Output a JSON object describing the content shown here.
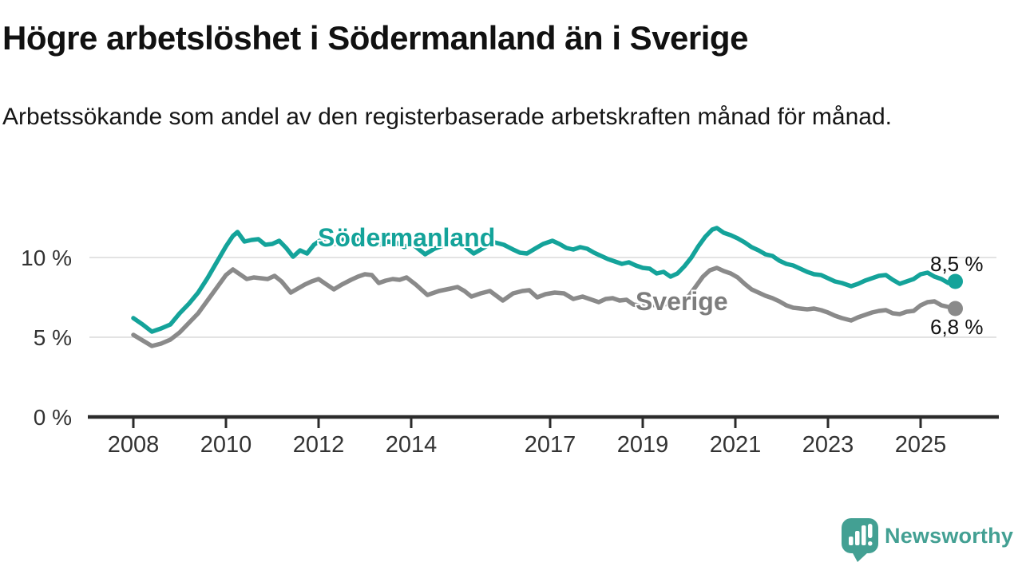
{
  "header": {
    "title": "Högre arbetslöshet i Södermanland än i Sverige",
    "subtitle": "Arbetssökande som andel av den registerbaserade arbetskraften månad för månad."
  },
  "colors": {
    "sodermanland_teal": "#14A39A",
    "sverige_gray": "#8A8A8A",
    "sverige_label_gray": "#7D7D7D",
    "axis_dark": "#2B2B2B",
    "gridline_gray": "#DADADA",
    "tick_label_gray": "#333333",
    "brand_teal": "#43A093",
    "text_black": "#111111",
    "background": "#FFFFFF"
  },
  "chart_data": {
    "type": "line",
    "title": "Högre arbetslöshet i Södermanland än i Sverige",
    "subtitle": "Arbetssökande som andel av den registerbaserade arbetskraften månad för månad.",
    "unit": "%",
    "grid": "horizontal-only",
    "legend_position": "inline-on-lines",
    "x_axis": {
      "type": "time-years",
      "range": [
        2007.0,
        2026.7
      ],
      "ticks": [
        {
          "value": 2008,
          "label": "2008"
        },
        {
          "value": 2010,
          "label": "2010"
        },
        {
          "value": 2012,
          "label": "2012"
        },
        {
          "value": 2014,
          "label": "2014"
        },
        {
          "value": 2017,
          "label": "2017"
        },
        {
          "value": 2019,
          "label": "2019"
        },
        {
          "value": 2021,
          "label": "2021"
        },
        {
          "value": 2023,
          "label": "2023"
        },
        {
          "value": 2025,
          "label": "2025"
        }
      ]
    },
    "y_axis": {
      "range": [
        0,
        12.5
      ],
      "ticks": [
        {
          "value": 10,
          "label": "10 %"
        },
        {
          "value": 5,
          "label": "5 %"
        },
        {
          "value": 0,
          "label": "0 %"
        }
      ]
    },
    "series": [
      {
        "name": "Södermanland",
        "color": "#14A39A",
        "end_label": "8,5 %",
        "end_value": 8.5,
        "points": [
          [
            2008.0,
            6.2
          ],
          [
            2008.2,
            5.8
          ],
          [
            2008.4,
            5.35
          ],
          [
            2008.6,
            5.55
          ],
          [
            2008.8,
            5.8
          ],
          [
            2009.0,
            6.5
          ],
          [
            2009.2,
            7.1
          ],
          [
            2009.4,
            7.8
          ],
          [
            2009.6,
            8.7
          ],
          [
            2009.8,
            9.7
          ],
          [
            2010.0,
            10.7
          ],
          [
            2010.15,
            11.35
          ],
          [
            2010.25,
            11.6
          ],
          [
            2010.4,
            11.0
          ],
          [
            2010.55,
            11.1
          ],
          [
            2010.7,
            11.15
          ],
          [
            2010.85,
            10.8
          ],
          [
            2011.0,
            10.85
          ],
          [
            2011.15,
            11.05
          ],
          [
            2011.3,
            10.6
          ],
          [
            2011.45,
            10.05
          ],
          [
            2011.6,
            10.45
          ],
          [
            2011.75,
            10.25
          ],
          [
            2011.9,
            10.8
          ],
          [
            2012.05,
            11.1
          ],
          [
            2012.2,
            11.2
          ],
          [
            2012.35,
            10.85
          ],
          [
            2012.5,
            11.15
          ],
          [
            2012.65,
            11.05
          ],
          [
            2012.8,
            11.1
          ],
          [
            2013.0,
            11.3
          ],
          [
            2013.2,
            11.05
          ],
          [
            2013.35,
            10.8
          ],
          [
            2013.5,
            11.0
          ],
          [
            2013.7,
            10.9
          ],
          [
            2013.85,
            10.65
          ],
          [
            2014.0,
            10.9
          ],
          [
            2014.15,
            10.55
          ],
          [
            2014.3,
            10.2
          ],
          [
            2014.5,
            10.55
          ],
          [
            2014.7,
            10.75
          ],
          [
            2014.9,
            10.95
          ],
          [
            2015.05,
            11.0
          ],
          [
            2015.2,
            10.6
          ],
          [
            2015.35,
            10.25
          ],
          [
            2015.5,
            10.5
          ],
          [
            2015.65,
            10.75
          ],
          [
            2015.8,
            10.95
          ],
          [
            2016.0,
            10.8
          ],
          [
            2016.2,
            10.5
          ],
          [
            2016.35,
            10.3
          ],
          [
            2016.5,
            10.25
          ],
          [
            2016.7,
            10.6
          ],
          [
            2016.85,
            10.85
          ],
          [
            2017.05,
            11.05
          ],
          [
            2017.2,
            10.85
          ],
          [
            2017.35,
            10.6
          ],
          [
            2017.5,
            10.5
          ],
          [
            2017.65,
            10.65
          ],
          [
            2017.8,
            10.55
          ],
          [
            2017.95,
            10.3
          ],
          [
            2018.1,
            10.1
          ],
          [
            2018.25,
            9.9
          ],
          [
            2018.4,
            9.75
          ],
          [
            2018.55,
            9.6
          ],
          [
            2018.7,
            9.7
          ],
          [
            2018.85,
            9.5
          ],
          [
            2019.0,
            9.35
          ],
          [
            2019.15,
            9.3
          ],
          [
            2019.3,
            9.0
          ],
          [
            2019.45,
            9.1
          ],
          [
            2019.6,
            8.8
          ],
          [
            2019.75,
            9.0
          ],
          [
            2019.9,
            9.45
          ],
          [
            2020.05,
            10.0
          ],
          [
            2020.2,
            10.7
          ],
          [
            2020.35,
            11.3
          ],
          [
            2020.5,
            11.75
          ],
          [
            2020.6,
            11.85
          ],
          [
            2020.75,
            11.55
          ],
          [
            2020.9,
            11.4
          ],
          [
            2021.05,
            11.2
          ],
          [
            2021.2,
            10.95
          ],
          [
            2021.35,
            10.65
          ],
          [
            2021.5,
            10.45
          ],
          [
            2021.65,
            10.2
          ],
          [
            2021.8,
            10.1
          ],
          [
            2021.95,
            9.8
          ],
          [
            2022.1,
            9.6
          ],
          [
            2022.25,
            9.5
          ],
          [
            2022.4,
            9.3
          ],
          [
            2022.55,
            9.1
          ],
          [
            2022.7,
            8.95
          ],
          [
            2022.85,
            8.9
          ],
          [
            2023.0,
            8.7
          ],
          [
            2023.15,
            8.5
          ],
          [
            2023.3,
            8.4
          ],
          [
            2023.5,
            8.2
          ],
          [
            2023.65,
            8.35
          ],
          [
            2023.8,
            8.55
          ],
          [
            2023.95,
            8.7
          ],
          [
            2024.1,
            8.85
          ],
          [
            2024.25,
            8.9
          ],
          [
            2024.4,
            8.6
          ],
          [
            2024.55,
            8.35
          ],
          [
            2024.7,
            8.5
          ],
          [
            2024.85,
            8.65
          ],
          [
            2025.0,
            8.95
          ],
          [
            2025.15,
            9.05
          ],
          [
            2025.3,
            8.8
          ],
          [
            2025.45,
            8.65
          ],
          [
            2025.6,
            8.4
          ],
          [
            2025.75,
            8.5
          ]
        ]
      },
      {
        "name": "Sverige",
        "color": "#8A8A8A",
        "end_label": "6,8 %",
        "end_value": 6.8,
        "points": [
          [
            2008.0,
            5.15
          ],
          [
            2008.2,
            4.8
          ],
          [
            2008.4,
            4.45
          ],
          [
            2008.6,
            4.6
          ],
          [
            2008.8,
            4.85
          ],
          [
            2009.0,
            5.3
          ],
          [
            2009.2,
            5.9
          ],
          [
            2009.4,
            6.5
          ],
          [
            2009.6,
            7.3
          ],
          [
            2009.8,
            8.1
          ],
          [
            2010.0,
            8.9
          ],
          [
            2010.15,
            9.25
          ],
          [
            2010.3,
            8.95
          ],
          [
            2010.45,
            8.65
          ],
          [
            2010.6,
            8.75
          ],
          [
            2010.75,
            8.7
          ],
          [
            2010.9,
            8.65
          ],
          [
            2011.05,
            8.85
          ],
          [
            2011.2,
            8.5
          ],
          [
            2011.4,
            7.8
          ],
          [
            2011.55,
            8.05
          ],
          [
            2011.7,
            8.3
          ],
          [
            2011.85,
            8.5
          ],
          [
            2012.0,
            8.65
          ],
          [
            2012.15,
            8.35
          ],
          [
            2012.33,
            8.0
          ],
          [
            2012.5,
            8.3
          ],
          [
            2012.7,
            8.6
          ],
          [
            2012.85,
            8.8
          ],
          [
            2013.0,
            8.95
          ],
          [
            2013.15,
            8.9
          ],
          [
            2013.3,
            8.4
          ],
          [
            2013.45,
            8.55
          ],
          [
            2013.6,
            8.65
          ],
          [
            2013.75,
            8.6
          ],
          [
            2013.9,
            8.75
          ],
          [
            2014.1,
            8.3
          ],
          [
            2014.35,
            7.65
          ],
          [
            2014.6,
            7.9
          ],
          [
            2014.85,
            8.05
          ],
          [
            2015.0,
            8.15
          ],
          [
            2015.15,
            7.9
          ],
          [
            2015.3,
            7.55
          ],
          [
            2015.5,
            7.75
          ],
          [
            2015.7,
            7.9
          ],
          [
            2015.98,
            7.3
          ],
          [
            2016.2,
            7.75
          ],
          [
            2016.4,
            7.9
          ],
          [
            2016.55,
            7.95
          ],
          [
            2016.72,
            7.5
          ],
          [
            2016.9,
            7.7
          ],
          [
            2017.1,
            7.8
          ],
          [
            2017.3,
            7.75
          ],
          [
            2017.5,
            7.4
          ],
          [
            2017.7,
            7.55
          ],
          [
            2017.9,
            7.35
          ],
          [
            2018.05,
            7.2
          ],
          [
            2018.2,
            7.4
          ],
          [
            2018.35,
            7.45
          ],
          [
            2018.5,
            7.3
          ],
          [
            2018.65,
            7.35
          ],
          [
            2018.8,
            7.05
          ],
          [
            2019.0,
            6.95
          ],
          [
            2019.2,
            7.0
          ],
          [
            2019.4,
            7.1
          ],
          [
            2019.6,
            7.05
          ],
          [
            2019.8,
            7.2
          ],
          [
            2020.0,
            7.6
          ],
          [
            2020.15,
            8.2
          ],
          [
            2020.3,
            8.8
          ],
          [
            2020.45,
            9.2
          ],
          [
            2020.6,
            9.35
          ],
          [
            2020.75,
            9.15
          ],
          [
            2020.9,
            9.0
          ],
          [
            2021.05,
            8.75
          ],
          [
            2021.2,
            8.35
          ],
          [
            2021.35,
            8.0
          ],
          [
            2021.5,
            7.8
          ],
          [
            2021.65,
            7.6
          ],
          [
            2021.8,
            7.45
          ],
          [
            2021.95,
            7.25
          ],
          [
            2022.1,
            7.0
          ],
          [
            2022.25,
            6.85
          ],
          [
            2022.4,
            6.8
          ],
          [
            2022.55,
            6.75
          ],
          [
            2022.7,
            6.8
          ],
          [
            2022.85,
            6.7
          ],
          [
            2023.0,
            6.55
          ],
          [
            2023.15,
            6.35
          ],
          [
            2023.3,
            6.2
          ],
          [
            2023.5,
            6.05
          ],
          [
            2023.65,
            6.25
          ],
          [
            2023.8,
            6.4
          ],
          [
            2023.95,
            6.55
          ],
          [
            2024.1,
            6.65
          ],
          [
            2024.25,
            6.7
          ],
          [
            2024.4,
            6.5
          ],
          [
            2024.55,
            6.45
          ],
          [
            2024.7,
            6.6
          ],
          [
            2024.85,
            6.65
          ],
          [
            2025.0,
            7.0
          ],
          [
            2025.15,
            7.2
          ],
          [
            2025.3,
            7.25
          ],
          [
            2025.45,
            7.0
          ],
          [
            2025.6,
            6.9
          ],
          [
            2025.75,
            6.8
          ]
        ]
      }
    ]
  },
  "footer": {
    "brand": "Newsworthy",
    "logo_icon": "newsworthy-speech-bubble-bar-chart-icon",
    "brand_color": "#43A093"
  }
}
